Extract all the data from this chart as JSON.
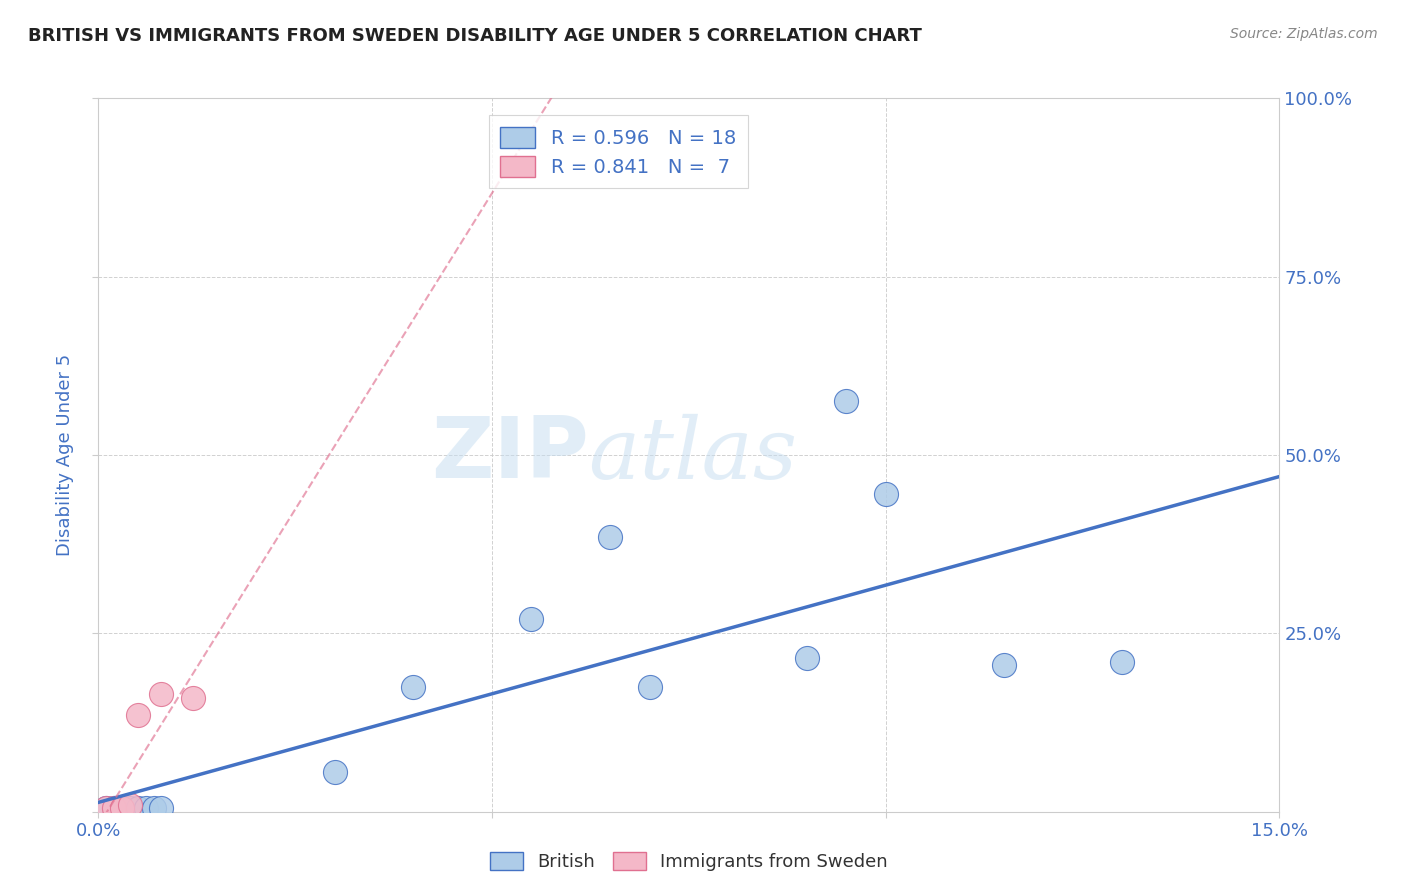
{
  "title": "BRITISH VS IMMIGRANTS FROM SWEDEN DISABILITY AGE UNDER 5 CORRELATION CHART",
  "source": "Source: ZipAtlas.com",
  "ylabel": "Disability Age Under 5",
  "x_min": 0.0,
  "x_max": 0.15,
  "y_min": 0.0,
  "y_max": 1.0,
  "x_ticks": [
    0.0,
    0.05,
    0.1,
    0.15
  ],
  "x_tick_labels": [
    "0.0%",
    "",
    "",
    "15.0%"
  ],
  "y_ticks": [
    0.0,
    0.25,
    0.5,
    0.75,
    1.0
  ],
  "y_tick_labels_right": [
    "",
    "25.0%",
    "50.0%",
    "75.0%",
    "100.0%"
  ],
  "british_R": 0.596,
  "british_N": 18,
  "sweden_R": 0.841,
  "sweden_N": 7,
  "british_color": "#aecce8",
  "british_line_color": "#4472c4",
  "sweden_color": "#f4b8c8",
  "sweden_line_color": "#e07090",
  "british_x": [
    0.001,
    0.002,
    0.003,
    0.004,
    0.005,
    0.006,
    0.007,
    0.008,
    0.03,
    0.04,
    0.055,
    0.065,
    0.07,
    0.09,
    0.095,
    0.1,
    0.115,
    0.13
  ],
  "british_y": [
    0.005,
    0.005,
    0.005,
    0.005,
    0.005,
    0.005,
    0.005,
    0.005,
    0.055,
    0.175,
    0.27,
    0.385,
    0.175,
    0.215,
    0.575,
    0.445,
    0.205,
    0.21
  ],
  "sweden_x": [
    0.001,
    0.002,
    0.003,
    0.004,
    0.005,
    0.008,
    0.012
  ],
  "sweden_y": [
    0.005,
    0.005,
    0.005,
    0.01,
    0.135,
    0.165,
    0.16
  ],
  "watermark_zip": "ZIP",
  "watermark_atlas": "atlas",
  "background_color": "#ffffff",
  "grid_color": "#cccccc",
  "title_color": "#222222",
  "tick_label_color": "#4472c4"
}
